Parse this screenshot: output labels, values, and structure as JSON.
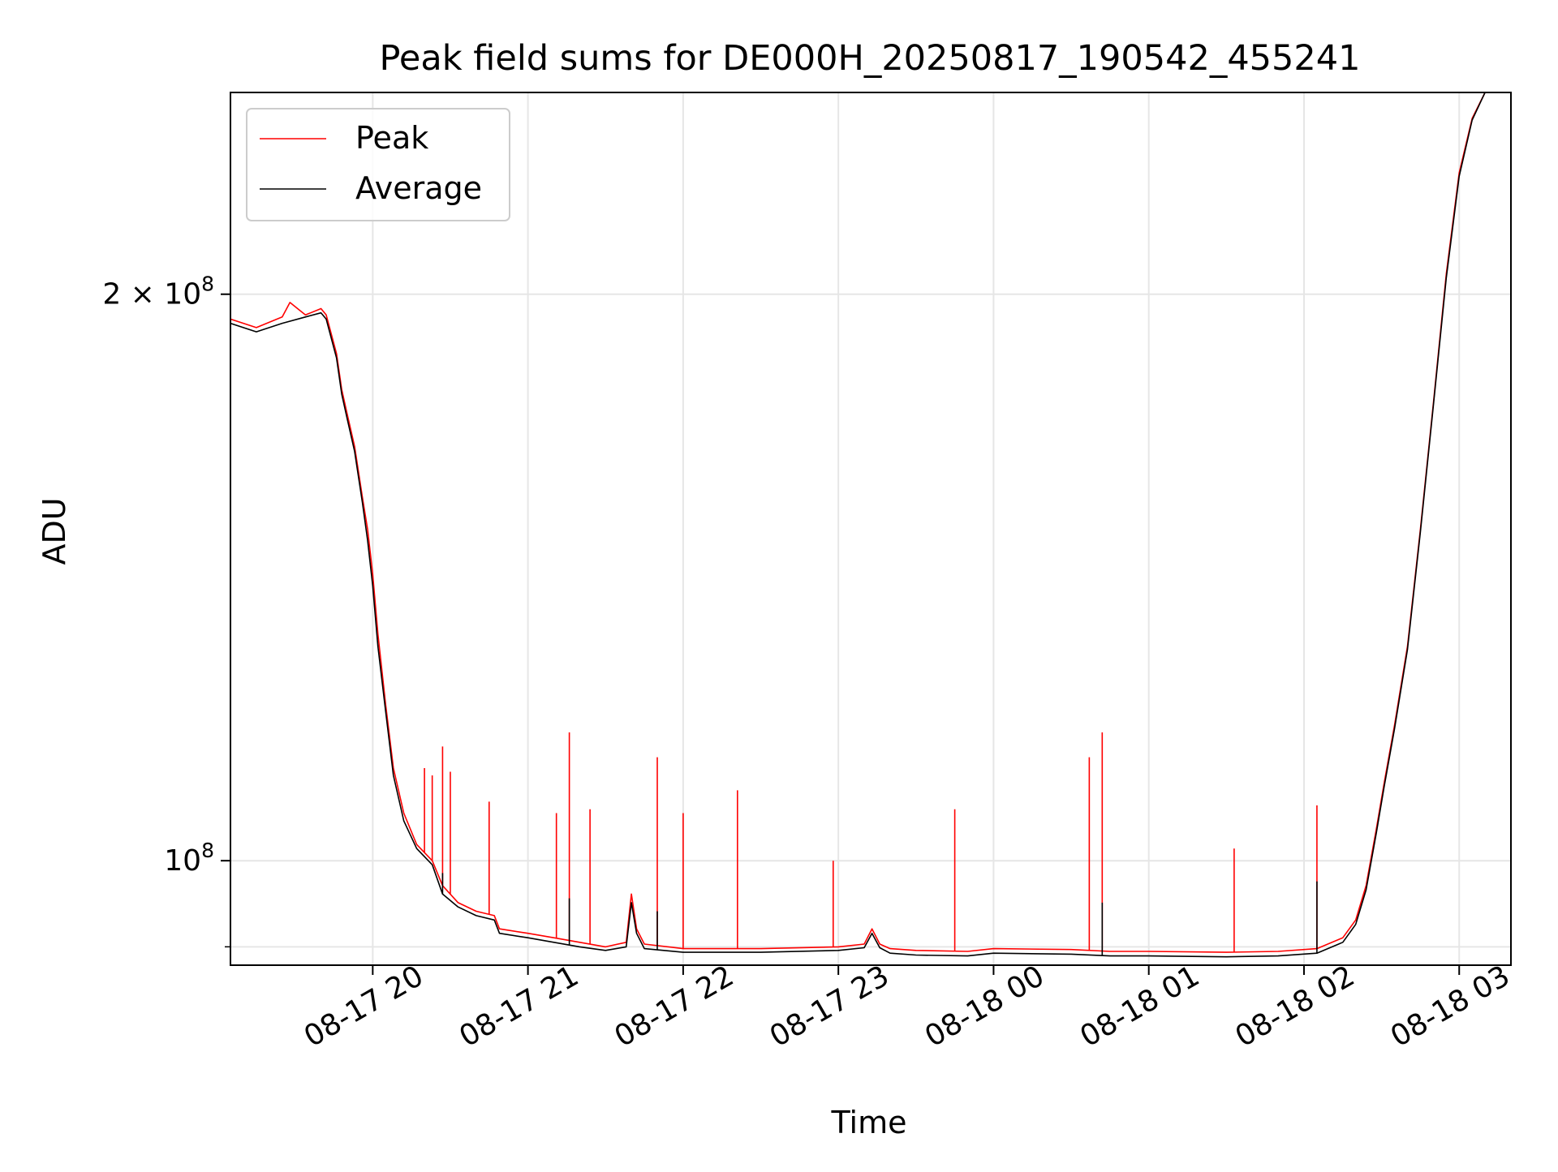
{
  "chart_data": {
    "type": "line",
    "title": "Peak field sums for DE000H_20250817_190542_455241",
    "xlabel": "Time",
    "ylabel": "ADU",
    "yscale": "log",
    "grid": true,
    "legend_position": "top-left",
    "xlim": [
      "2025-08-17 19:05",
      "2025-08-18 03:20"
    ],
    "ylim": [
      88000000,
      256000000
    ],
    "x_ticks": [
      {
        "value": "2025-08-17 20:00",
        "label": "08-17 20"
      },
      {
        "value": "2025-08-17 21:00",
        "label": "08-17 21"
      },
      {
        "value": "2025-08-17 22:00",
        "label": "08-17 22"
      },
      {
        "value": "2025-08-17 23:00",
        "label": "08-17 23"
      },
      {
        "value": "2025-08-18 00:00",
        "label": "08-18 00"
      },
      {
        "value": "2025-08-18 01:00",
        "label": "08-18 01"
      },
      {
        "value": "2025-08-18 02:00",
        "label": "08-18 02"
      },
      {
        "value": "2025-08-18 03:00",
        "label": "08-18 03"
      }
    ],
    "y_ticks": [
      {
        "value": 200000000,
        "base": "2 × 10",
        "exp": "8"
      },
      {
        "value": 100000000,
        "base": "10",
        "exp": "8"
      }
    ],
    "y_minor_ticks": [
      90000000
    ],
    "series": [
      {
        "name": "Peak",
        "color": "#ff0000",
        "points": [
          [
            "2025-08-17 19:05",
            194000000
          ],
          [
            "2025-08-17 19:15",
            192000000
          ],
          [
            "2025-08-17 19:25",
            194500000
          ],
          [
            "2025-08-17 19:28",
            198000000
          ],
          [
            "2025-08-17 19:34",
            195000000
          ],
          [
            "2025-08-17 19:40",
            196500000
          ],
          [
            "2025-08-17 19:42",
            195000000
          ],
          [
            "2025-08-17 19:46",
            186000000
          ],
          [
            "2025-08-17 19:48",
            178000000
          ],
          [
            "2025-08-17 19:50",
            173000000
          ],
          [
            "2025-08-17 19:53",
            166000000
          ],
          [
            "2025-08-17 19:56",
            156000000
          ],
          [
            "2025-08-17 19:58",
            150000000
          ],
          [
            "2025-08-17 20:00",
            142000000
          ],
          [
            "2025-08-17 20:02",
            132000000
          ],
          [
            "2025-08-17 20:05",
            121000000
          ],
          [
            "2025-08-17 20:08",
            112000000
          ],
          [
            "2025-08-17 20:12",
            106000000
          ],
          [
            "2025-08-17 20:17",
            102000000
          ],
          [
            "2025-08-17 20:20",
            101000000
          ],
          [
            "2025-08-17 20:23",
            100000000
          ],
          [
            "2025-08-17 20:27",
            97000000
          ],
          [
            "2025-08-17 20:33",
            95000000
          ],
          [
            "2025-08-17 20:40",
            94000000
          ],
          [
            "2025-08-17 20:47",
            93500000
          ],
          [
            "2025-08-17 20:49",
            92000000
          ],
          [
            "2025-08-17 21:00",
            91500000
          ],
          [
            "2025-08-17 21:10",
            91000000
          ],
          [
            "2025-08-17 21:20",
            90500000
          ],
          [
            "2025-08-17 21:30",
            90000000
          ],
          [
            "2025-08-17 21:38",
            90500000
          ],
          [
            "2025-08-17 21:40",
            96000000
          ],
          [
            "2025-08-17 21:42",
            92000000
          ],
          [
            "2025-08-17 21:45",
            90300000
          ],
          [
            "2025-08-17 22:00",
            89800000
          ],
          [
            "2025-08-17 22:30",
            89800000
          ],
          [
            "2025-08-17 23:00",
            90000000
          ],
          [
            "2025-08-17 23:10",
            90300000
          ],
          [
            "2025-08-17 23:13",
            92000000
          ],
          [
            "2025-08-17 23:16",
            90300000
          ],
          [
            "2025-08-17 23:20",
            89800000
          ],
          [
            "2025-08-17 23:30",
            89600000
          ],
          [
            "2025-08-17 23:50",
            89500000
          ],
          [
            "2025-08-18 00:00",
            89800000
          ],
          [
            "2025-08-18 00:30",
            89700000
          ],
          [
            "2025-08-18 00:45",
            89500000
          ],
          [
            "2025-08-18 01:00",
            89500000
          ],
          [
            "2025-08-18 01:30",
            89400000
          ],
          [
            "2025-08-18 01:50",
            89500000
          ],
          [
            "2025-08-18 02:05",
            89800000
          ],
          [
            "2025-08-18 02:15",
            91000000
          ],
          [
            "2025-08-18 02:20",
            93000000
          ],
          [
            "2025-08-18 02:24",
            97000000
          ],
          [
            "2025-08-18 02:28",
            104000000
          ],
          [
            "2025-08-18 02:31",
            110000000
          ],
          [
            "2025-08-18 02:35",
            118000000
          ],
          [
            "2025-08-18 02:40",
            130000000
          ],
          [
            "2025-08-18 02:45",
            150000000
          ],
          [
            "2025-08-18 02:50",
            175000000
          ],
          [
            "2025-08-18 02:55",
            205000000
          ],
          [
            "2025-08-18 03:00",
            232000000
          ],
          [
            "2025-08-18 03:05",
            248000000
          ],
          [
            "2025-08-18 03:10",
            256000000
          ],
          [
            "2025-08-18 03:20",
            256000000
          ]
        ],
        "spikes": [
          [
            "2025-08-17 20:20",
            112000000
          ],
          [
            "2025-08-17 20:23",
            111000000
          ],
          [
            "2025-08-17 20:27",
            115000000
          ],
          [
            "2025-08-17 20:30",
            111500000
          ],
          [
            "2025-08-17 20:45",
            107500000
          ],
          [
            "2025-08-17 21:11",
            106000000
          ],
          [
            "2025-08-17 21:16",
            117000000
          ],
          [
            "2025-08-17 21:24",
            106500000
          ],
          [
            "2025-08-17 21:50",
            113500000
          ],
          [
            "2025-08-17 22:00",
            106000000
          ],
          [
            "2025-08-17 22:21",
            109000000
          ],
          [
            "2025-08-17 22:58",
            100000000
          ],
          [
            "2025-08-17 23:45",
            106500000
          ],
          [
            "2025-08-18 00:37",
            113500000
          ],
          [
            "2025-08-18 00:42",
            117000000
          ],
          [
            "2025-08-18 01:33",
            101500000
          ],
          [
            "2025-08-18 02:05",
            107000000
          ]
        ]
      },
      {
        "name": "Average",
        "color": "#000000",
        "points": [
          [
            "2025-08-17 19:05",
            193000000
          ],
          [
            "2025-08-17 19:15",
            191000000
          ],
          [
            "2025-08-17 19:25",
            193000000
          ],
          [
            "2025-08-17 19:34",
            194500000
          ],
          [
            "2025-08-17 19:40",
            195500000
          ],
          [
            "2025-08-17 19:42",
            194000000
          ],
          [
            "2025-08-17 19:46",
            185000000
          ],
          [
            "2025-08-17 19:48",
            177000000
          ],
          [
            "2025-08-17 19:50",
            172000000
          ],
          [
            "2025-08-17 19:53",
            165000000
          ],
          [
            "2025-08-17 19:56",
            155000000
          ],
          [
            "2025-08-17 19:58",
            148000000
          ],
          [
            "2025-08-17 20:00",
            140000000
          ],
          [
            "2025-08-17 20:02",
            130000000
          ],
          [
            "2025-08-17 20:05",
            120000000
          ],
          [
            "2025-08-17 20:08",
            111000000
          ],
          [
            "2025-08-17 20:12",
            105000000
          ],
          [
            "2025-08-17 20:17",
            101500000
          ],
          [
            "2025-08-17 20:20",
            100500000
          ],
          [
            "2025-08-17 20:23",
            99500000
          ],
          [
            "2025-08-17 20:27",
            96000000
          ],
          [
            "2025-08-17 20:33",
            94500000
          ],
          [
            "2025-08-17 20:40",
            93500000
          ],
          [
            "2025-08-17 20:47",
            93000000
          ],
          [
            "2025-08-17 20:49",
            91500000
          ],
          [
            "2025-08-17 21:00",
            91000000
          ],
          [
            "2025-08-17 21:10",
            90500000
          ],
          [
            "2025-08-17 21:20",
            90000000
          ],
          [
            "2025-08-17 21:30",
            89600000
          ],
          [
            "2025-08-17 21:38",
            90000000
          ],
          [
            "2025-08-17 21:40",
            95000000
          ],
          [
            "2025-08-17 21:42",
            91500000
          ],
          [
            "2025-08-17 21:45",
            89800000
          ],
          [
            "2025-08-17 22:00",
            89400000
          ],
          [
            "2025-08-17 22:30",
            89400000
          ],
          [
            "2025-08-17 23:00",
            89600000
          ],
          [
            "2025-08-17 23:10",
            89900000
          ],
          [
            "2025-08-17 23:13",
            91500000
          ],
          [
            "2025-08-17 23:16",
            89900000
          ],
          [
            "2025-08-17 23:20",
            89300000
          ],
          [
            "2025-08-17 23:30",
            89100000
          ],
          [
            "2025-08-17 23:50",
            89000000
          ],
          [
            "2025-08-18 00:00",
            89300000
          ],
          [
            "2025-08-18 00:30",
            89200000
          ],
          [
            "2025-08-18 00:45",
            89000000
          ],
          [
            "2025-08-18 01:00",
            89000000
          ],
          [
            "2025-08-18 01:30",
            88900000
          ],
          [
            "2025-08-18 01:50",
            89000000
          ],
          [
            "2025-08-18 02:05",
            89300000
          ],
          [
            "2025-08-18 02:15",
            90500000
          ],
          [
            "2025-08-18 02:20",
            92500000
          ],
          [
            "2025-08-18 02:24",
            96500000
          ],
          [
            "2025-08-18 02:28",
            103500000
          ],
          [
            "2025-08-18 02:31",
            109500000
          ],
          [
            "2025-08-18 02:35",
            117500000
          ],
          [
            "2025-08-18 02:40",
            129500000
          ],
          [
            "2025-08-18 02:45",
            149500000
          ],
          [
            "2025-08-18 02:50",
            174500000
          ],
          [
            "2025-08-18 02:55",
            204000000
          ],
          [
            "2025-08-18 03:00",
            231000000
          ],
          [
            "2025-08-18 03:05",
            247500000
          ],
          [
            "2025-08-18 03:10",
            256000000
          ],
          [
            "2025-08-18 03:20",
            256000000
          ]
        ],
        "spikes": [
          [
            "2025-08-17 20:27",
            98500000
          ],
          [
            "2025-08-17 21:16",
            95500000
          ],
          [
            "2025-08-17 21:50",
            94000000
          ],
          [
            "2025-08-18 00:42",
            95000000
          ],
          [
            "2025-08-18 02:05",
            97500000
          ]
        ]
      }
    ]
  }
}
